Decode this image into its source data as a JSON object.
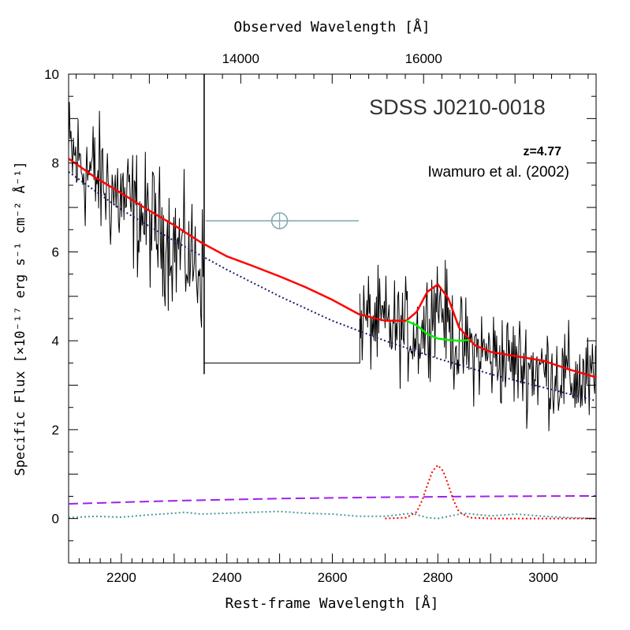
{
  "chart_data": {
    "type": "line",
    "title": "SDSS J0210-0018",
    "annotations": [
      "z=4.77",
      "Iwamuro et al. (2002)"
    ],
    "xlabel": "Rest-frame Wavelength [Å]",
    "ylabel": "Specific Flux [×10⁻¹⁷ erg s⁻¹ cm⁻² Å⁻¹]",
    "top_xlabel": "Observed Wavelength [Å]",
    "xlim": [
      2100,
      3100
    ],
    "ylim": [
      -1,
      10
    ],
    "x_ticks": [
      2200,
      2400,
      2600,
      2800,
      3000
    ],
    "x_tick_labels": [
      "2200",
      "2400",
      "2600",
      "2800",
      "3000"
    ],
    "y_ticks": [
      0,
      2,
      4,
      6,
      8,
      10
    ],
    "y_tick_labels": [
      "0",
      "2",
      "4",
      "6",
      "8",
      "10"
    ],
    "top_ticks_observed": [
      14000,
      16000
    ],
    "top_tick_labels": [
      "14000",
      "16000"
    ],
    "redshift": 4.77,
    "telluric_marker": {
      "x": 2500,
      "y": 6.7,
      "bar_from": 2360,
      "bar_to": 2650,
      "color": "#7fa7b4"
    },
    "series": [
      {
        "name": "Observed spectrum",
        "color": "#000000",
        "style": "noisy",
        "segments": [
          {
            "x_from": 2100,
            "x_to": 2357,
            "y_start": 8.2,
            "y_end": 5.6,
            "noise": 1.4
          },
          {
            "x_from": 2652,
            "x_to": 3100,
            "y_start": 4.5,
            "y_end": 3.0,
            "noise": 1.1
          }
        ],
        "gap": {
          "x_from": 2357,
          "x_to": 2652,
          "y": 3.5
        }
      },
      {
        "name": "Total model",
        "color": "#ff0000",
        "style": "solid",
        "x": [
          2100,
          2150,
          2200,
          2250,
          2300,
          2350,
          2400,
          2450,
          2500,
          2550,
          2600,
          2650,
          2700,
          2740,
          2760,
          2780,
          2800,
          2820,
          2840,
          2870,
          2900,
          2950,
          3000,
          3050,
          3100
        ],
        "y": [
          8.1,
          7.68,
          7.32,
          6.95,
          6.6,
          6.22,
          5.9,
          5.68,
          5.45,
          5.2,
          4.92,
          4.6,
          4.45,
          4.45,
          4.65,
          5.1,
          5.27,
          4.95,
          4.3,
          3.9,
          3.75,
          3.65,
          3.55,
          3.35,
          3.18
        ]
      },
      {
        "name": "Continuum + Fe II",
        "color": "#00ee00",
        "style": "solid",
        "x": [
          2740,
          2760,
          2780,
          2800,
          2820,
          2840,
          2860
        ],
        "y": [
          4.45,
          4.35,
          4.15,
          4.05,
          4.02,
          4.0,
          4.02
        ]
      },
      {
        "name": "Power-law continuum",
        "color": "#1a1a6e",
        "style": "dotted",
        "x": [
          2100,
          2200,
          2300,
          2400,
          2500,
          2600,
          2700,
          2800,
          2900,
          3000,
          3100
        ],
        "y": [
          7.8,
          6.95,
          6.25,
          5.6,
          5.0,
          4.45,
          4.0,
          3.6,
          3.25,
          2.95,
          2.65
        ]
      },
      {
        "name": "Balmer continuum",
        "color": "#a020f0",
        "style": "dashed",
        "x": [
          2100,
          2300,
          2500,
          2700,
          2900,
          3100
        ],
        "y": [
          0.33,
          0.4,
          0.45,
          0.48,
          0.5,
          0.51
        ]
      },
      {
        "name": "Mg II emission",
        "color": "#ff0000",
        "style": "dotted",
        "x": [
          2700,
          2740,
          2760,
          2770,
          2780,
          2790,
          2800,
          2810,
          2820,
          2830,
          2840,
          2860,
          2900,
          3100
        ],
        "y": [
          0,
          0.02,
          0.15,
          0.4,
          0.75,
          1.07,
          1.2,
          1.07,
          0.75,
          0.4,
          0.15,
          0.02,
          0,
          0
        ]
      },
      {
        "name": "Fe II template",
        "color": "#4a9a9a",
        "style": "dotted",
        "x": [
          2100,
          2150,
          2200,
          2250,
          2300,
          2320,
          2350,
          2400,
          2450,
          2500,
          2550,
          2600,
          2650,
          2700,
          2750,
          2780,
          2800,
          2850,
          2900,
          2950,
          3000,
          3050,
          3100
        ],
        "y": [
          0.02,
          0.05,
          0.03,
          0.08,
          0.12,
          0.14,
          0.1,
          0.12,
          0.14,
          0.16,
          0.12,
          0.1,
          0.05,
          0.05,
          0.12,
          0.02,
          0.0,
          0.12,
          0.06,
          0.1,
          0.05,
          0.02,
          0.0
        ]
      }
    ]
  }
}
